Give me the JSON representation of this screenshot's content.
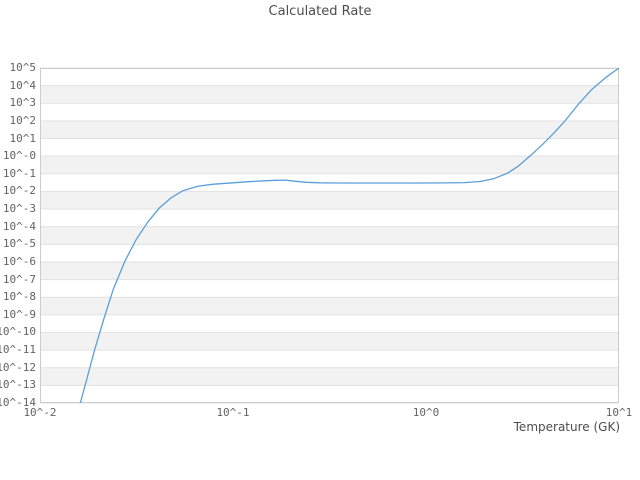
{
  "chart": {
    "title": "Calculated Rate",
    "x_axis": {
      "label": "Temperature (GK)",
      "scale": "log10",
      "tick_labels": [
        "10^-2",
        "10^-1",
        "10^0",
        "10^1"
      ]
    },
    "y_axis": {
      "label": "",
      "scale": "log10",
      "tick_labels": [
        "10^5",
        "10^4",
        "10^3",
        "10^2",
        "10^1",
        "10^-0",
        "10^-1",
        "10^-2",
        "10^-3",
        "10^-4",
        "10^-5",
        "10^-6",
        "10^-7",
        "10^-8",
        "10^-9",
        "10^-10",
        "10^-11",
        "10^-12",
        "10^-13",
        "10^-14"
      ]
    },
    "colors": {
      "line": "#5b9fd8",
      "band_gray": "#f2f2f2",
      "band_white": "#ffffff",
      "gridline": "#e2e2e2",
      "frame": "#cccccc",
      "tick_text": "#636363",
      "title_text": "#4d4d4d"
    }
  },
  "chart_data": {
    "type": "line",
    "title": "Calculated Rate",
    "xlabel": "Temperature (GK)",
    "ylabel": "",
    "xscale": "log",
    "yscale": "log",
    "xlim": [
      0.01,
      10
    ],
    "ylim": [
      1e-14,
      100000.0
    ],
    "xlim_log10": [
      -2,
      1
    ],
    "ylim_log10": [
      -14,
      5
    ],
    "grid": "horizontal-decade-bands",
    "legend": "none",
    "series": [
      {
        "name": "calculated-rate",
        "points_log10": [
          [
            -1.8,
            -14.35
          ],
          [
            -1.76,
            -12.75
          ],
          [
            -1.72,
            -11.1
          ],
          [
            -1.67,
            -9.25
          ],
          [
            -1.62,
            -7.55
          ],
          [
            -1.56,
            -5.95
          ],
          [
            -1.5,
            -4.7
          ],
          [
            -1.44,
            -3.72
          ],
          [
            -1.38,
            -2.92
          ],
          [
            -1.32,
            -2.36
          ],
          [
            -1.26,
            -1.96
          ],
          [
            -1.18,
            -1.7
          ],
          [
            -1.1,
            -1.59
          ],
          [
            -1.0,
            -1.51
          ],
          [
            -0.92,
            -1.45
          ],
          [
            -0.84,
            -1.4
          ],
          [
            -0.78,
            -1.37
          ],
          [
            -0.73,
            -1.36
          ],
          [
            -0.68,
            -1.42
          ],
          [
            -0.62,
            -1.48
          ],
          [
            -0.55,
            -1.51
          ],
          [
            -0.45,
            -1.52
          ],
          [
            -0.3,
            -1.52
          ],
          [
            -0.15,
            -1.52
          ],
          [
            0.0,
            -1.52
          ],
          [
            0.1,
            -1.515
          ],
          [
            0.2,
            -1.5
          ],
          [
            0.28,
            -1.44
          ],
          [
            0.35,
            -1.28
          ],
          [
            0.42,
            -0.98
          ],
          [
            0.48,
            -0.55
          ],
          [
            0.54,
            0.02
          ],
          [
            0.6,
            0.62
          ],
          [
            0.66,
            1.28
          ],
          [
            0.72,
            2.0
          ],
          [
            0.79,
            2.95
          ],
          [
            0.86,
            3.8
          ],
          [
            0.93,
            4.45
          ],
          [
            1.0,
            5.0
          ]
        ]
      }
    ]
  }
}
